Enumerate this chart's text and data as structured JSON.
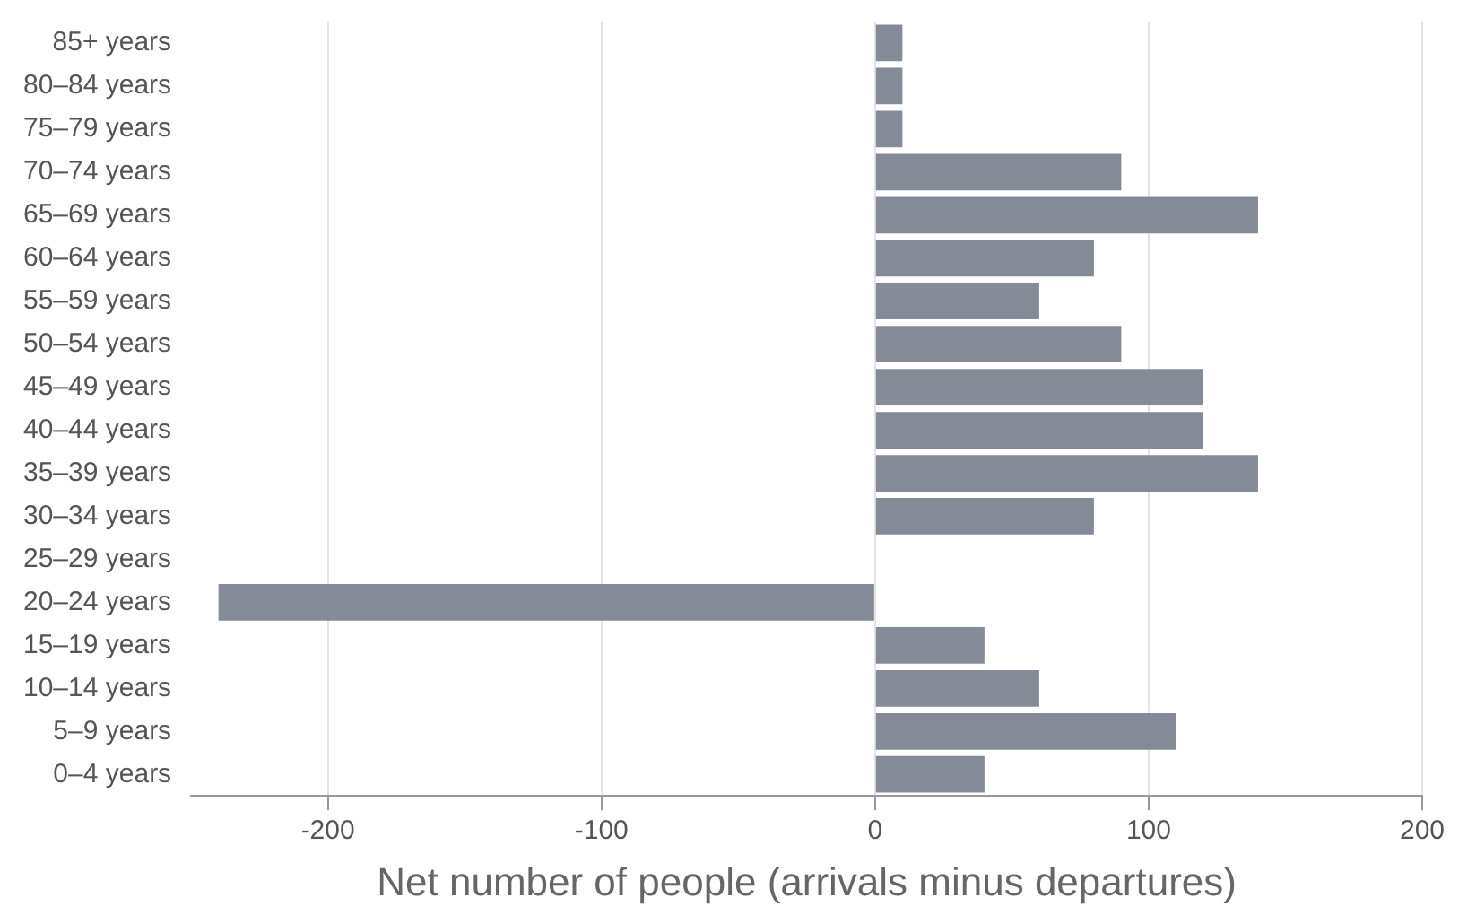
{
  "chart_data": {
    "type": "bar",
    "orientation": "horizontal",
    "xlabel": "Net number of people (arrivals minus departures)",
    "categories": [
      "85+ years",
      "80–84 years",
      "75–79 years",
      "70–74 years",
      "65–69 years",
      "60–64 years",
      "55–59 years",
      "50–54 years",
      "45–49 years",
      "40–44 years",
      "35–39 years",
      "30–34 years",
      "25–29 years",
      "20–24 years",
      "15–19 years",
      "10–14 years",
      "5–9 years",
      "0–4 years"
    ],
    "values": [
      10,
      10,
      10,
      90,
      140,
      80,
      60,
      90,
      120,
      120,
      140,
      80,
      0,
      -240,
      40,
      60,
      110,
      40
    ],
    "color": "#858b96",
    "xlim": [
      -250,
      200
    ],
    "xticks": [
      -200,
      -100,
      0,
      100,
      200
    ],
    "grid": "x",
    "legend": false
  }
}
